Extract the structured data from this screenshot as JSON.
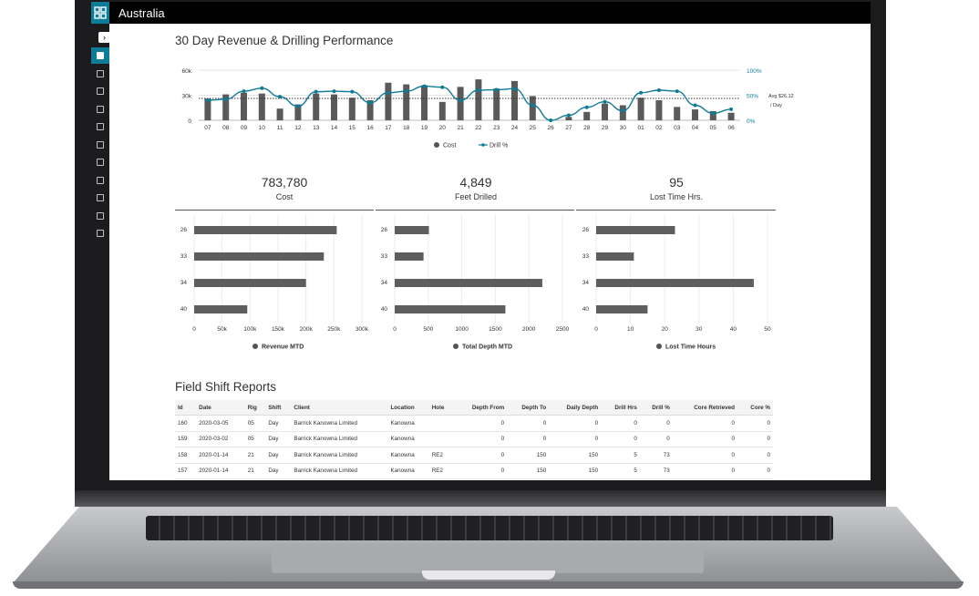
{
  "app": {
    "region": "Australia"
  },
  "sidebar": {
    "items": [
      "home-icon",
      "square-icon",
      "copy-icon",
      "document-icon",
      "user-icon",
      "wrench-icon",
      "file-icon",
      "image-icon",
      "list-icon",
      "bank-icon",
      "settings-icon"
    ]
  },
  "revenue_chart": {
    "title": "30 Day Revenue & Drilling Performance",
    "left_ticks": [
      "60k",
      "30k",
      "0"
    ],
    "right_ticks": [
      "100%",
      "50%",
      "0%"
    ],
    "avg_line_1": "Avg $26,12",
    "avg_line_2": "/ Day",
    "legend_cost": "Cost",
    "legend_drill": "Drill %"
  },
  "kpis": [
    {
      "value": "783,780",
      "label": "Cost"
    },
    {
      "value": "4,849",
      "label": "Feet Drilled"
    },
    {
      "value": "95",
      "label": "Lost Time Hrs."
    }
  ],
  "bar_charts": [
    {
      "legend": "Revenue MTD",
      "ticks": [
        "0",
        "50k",
        "100k",
        "150k",
        "200k",
        "250k",
        "300k"
      ]
    },
    {
      "legend": "Total Depth MTD",
      "ticks": [
        "0",
        "500",
        "1000",
        "1500",
        "2000",
        "2500"
      ]
    },
    {
      "legend": "Lost Time Hours",
      "ticks": [
        "0",
        "10",
        "20",
        "30",
        "40",
        "50"
      ]
    }
  ],
  "chart_data": [
    {
      "type": "bar",
      "title": "30 Day Revenue & Drilling Performance",
      "categories": [
        "07",
        "08",
        "09",
        "10",
        "11",
        "12",
        "13",
        "14",
        "15",
        "16",
        "17",
        "18",
        "19",
        "20",
        "21",
        "22",
        "23",
        "24",
        "25",
        "26",
        "27",
        "28",
        "29",
        "30",
        "01",
        "02",
        "03",
        "04",
        "05",
        "06"
      ],
      "series": [
        {
          "name": "Cost",
          "axis": "left",
          "values": [
            26000,
            31000,
            33000,
            32000,
            14000,
            19000,
            32000,
            31000,
            27000,
            24000,
            45000,
            43000,
            42000,
            22000,
            40000,
            49000,
            38000,
            47000,
            29000,
            0,
            4000,
            10000,
            20000,
            18000,
            27000,
            24000,
            16000,
            13000,
            11000,
            9000
          ]
        },
        {
          "name": "Drill %",
          "axis": "right",
          "type": "line",
          "values": [
            40,
            42,
            58,
            64,
            47,
            28,
            57,
            58,
            57,
            35,
            55,
            58,
            68,
            66,
            40,
            60,
            61,
            63,
            30,
            0,
            10,
            26,
            37,
            19,
            55,
            60,
            58,
            30,
            14,
            22
          ]
        }
      ],
      "ylim_left": [
        0,
        60000
      ],
      "ylim_right": [
        0,
        100
      ],
      "reference_line": {
        "label": "Avg $26,12 / Day",
        "value": 26120
      },
      "legend": "bottom"
    },
    {
      "type": "bar",
      "orientation": "horizontal",
      "categories": [
        "26",
        "33",
        "34",
        "40"
      ],
      "series": [
        {
          "name": "Revenue MTD",
          "values": [
            255000,
            232000,
            200000,
            95000
          ]
        }
      ],
      "xlim": [
        0,
        300000
      ]
    },
    {
      "type": "bar",
      "orientation": "horizontal",
      "categories": [
        "26",
        "33",
        "34",
        "40"
      ],
      "series": [
        {
          "name": "Total Depth MTD",
          "values": [
            510,
            430,
            2200,
            1650
          ]
        }
      ],
      "xlim": [
        0,
        2500
      ]
    },
    {
      "type": "bar",
      "orientation": "horizontal",
      "categories": [
        "26",
        "33",
        "34",
        "40"
      ],
      "series": [
        {
          "name": "Lost Time Hours",
          "values": [
            23,
            11,
            46,
            15
          ]
        }
      ],
      "xlim": [
        0,
        50
      ]
    }
  ],
  "reports": {
    "title": "Field Shift Reports",
    "columns": [
      "Id",
      "Date",
      "Rig",
      "Shift",
      "Client",
      "Location",
      "Hole",
      "Depth From",
      "Depth To",
      "Daily Depth",
      "Drill Hrs",
      "Drill %",
      "Core Retrieved",
      "Core %"
    ],
    "rows": [
      [
        "160",
        "2020-03-05",
        "05",
        "Day",
        "Barrick Kanowna Limited",
        "Kanowna",
        "",
        "0",
        "0",
        "0",
        "0",
        "0",
        "0",
        "0"
      ],
      [
        "159",
        "2020-03-02",
        "05",
        "Day",
        "Barrick Kanowna Limited",
        "Kanowna",
        "",
        "0",
        "0",
        "0",
        "0",
        "0",
        "0",
        "0"
      ],
      [
        "158",
        "2020-01-14",
        "21",
        "Day",
        "Barrick Kanowna Limited",
        "Kanowna",
        "RE2",
        "0",
        "150",
        "150",
        "5",
        "73",
        "0",
        "0"
      ],
      [
        "157",
        "2020-01-14",
        "21",
        "Day",
        "Barrick Kanowna Limited",
        "Kanowna",
        "RE2",
        "0",
        "150",
        "150",
        "5",
        "73",
        "0",
        "0"
      ]
    ]
  }
}
